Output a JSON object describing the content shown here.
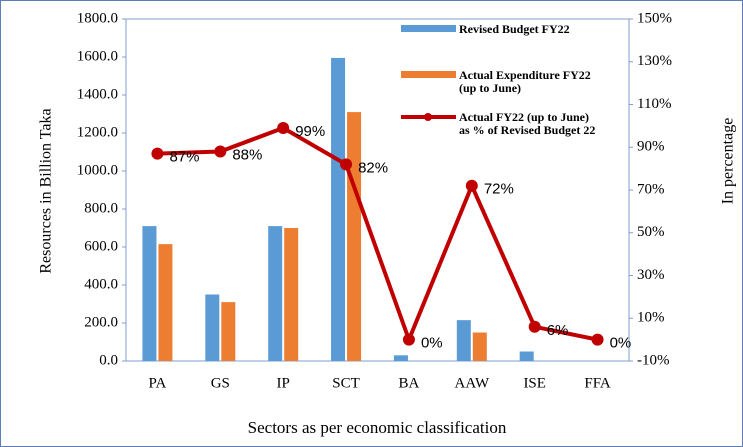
{
  "chart_data": {
    "type": "bar-line",
    "categories": [
      "PA",
      "GS",
      "IP",
      "SCT",
      "BA",
      "AAW",
      "ISE",
      "FFA"
    ],
    "series": [
      {
        "name": "Revised Budget FY22",
        "color": "#5b9bd5",
        "values": [
          710,
          350,
          710,
          1595,
          30,
          215,
          50,
          0
        ]
      },
      {
        "name": "Actual Expenditure FY22 (up to June)",
        "color": "#ed7d31",
        "values": [
          615,
          310,
          700,
          1310,
          0,
          150,
          0,
          0
        ]
      },
      {
        "name": "Actual FY22 (up to June) as % of Revised Budget 22",
        "color": "#c00000",
        "axis": "y2",
        "type": "line",
        "values": [
          87,
          88,
          99,
          82,
          0,
          72,
          6,
          0
        ],
        "value_labels": [
          "87%",
          "88%",
          "99%",
          "82%",
          "0%",
          "72%",
          "6%",
          "0%"
        ]
      }
    ],
    "ylabel": "Resources in Billion Taka",
    "y2label": "In percentage",
    "xlabel": "Sectors as per economic classification",
    "ylim": [
      0,
      1800
    ],
    "yticks": [
      {
        "value": 0,
        "label": "0.0"
      },
      {
        "value": 200,
        "label": "200.0"
      },
      {
        "value": 400,
        "label": "400.0"
      },
      {
        "value": 600,
        "label": "600.0"
      },
      {
        "value": 800,
        "label": "800.0"
      },
      {
        "value": 1000,
        "label": "1000.0"
      },
      {
        "value": 1200,
        "label": "1200.0"
      },
      {
        "value": 1400,
        "label": "1400.0"
      },
      {
        "value": 1600,
        "label": "1600.0"
      },
      {
        "value": 1800,
        "label": "1800.0"
      }
    ],
    "y2lim": [
      -10,
      150
    ],
    "y2ticks": [
      {
        "value": -10,
        "label": "-10%"
      },
      {
        "value": 10,
        "label": "10%"
      },
      {
        "value": 30,
        "label": "30%"
      },
      {
        "value": 50,
        "label": "50%"
      },
      {
        "value": 70,
        "label": "70%"
      },
      {
        "value": 90,
        "label": "90%"
      },
      {
        "value": 110,
        "label": "110%"
      },
      {
        "value": 130,
        "label": "130%"
      },
      {
        "value": 150,
        "label": "150%"
      }
    ],
    "grid": false
  }
}
